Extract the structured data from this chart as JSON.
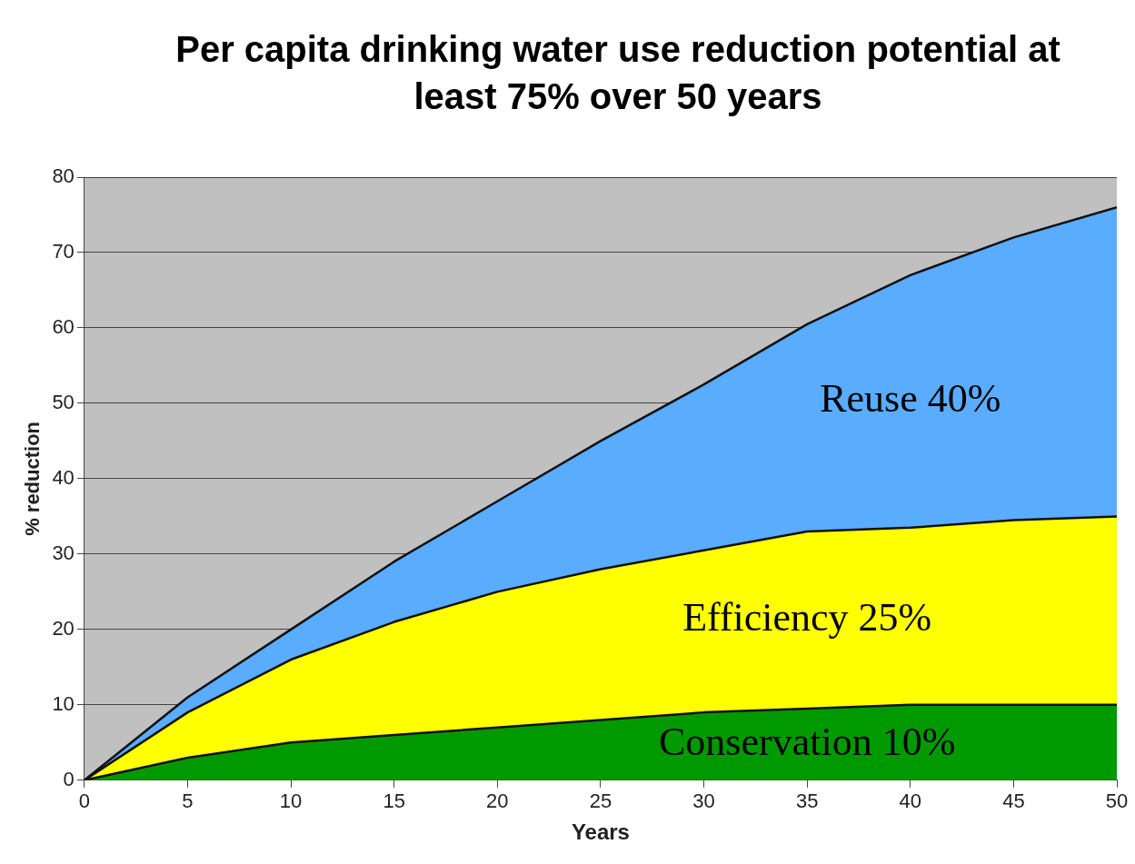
{
  "chart_data": {
    "type": "area",
    "title": "Per capita drinking water use reduction potential at least 75% over 50 years",
    "xlabel": "Years",
    "ylabel": "% reduction",
    "x": [
      0,
      5,
      10,
      15,
      20,
      25,
      30,
      35,
      40,
      45,
      50
    ],
    "series": [
      {
        "name": "Conservation 10%",
        "color": "#009900",
        "values": [
          0,
          3,
          5,
          6,
          7,
          8,
          9,
          9.5,
          10,
          10,
          10
        ]
      },
      {
        "name": "Efficiency 25%",
        "color": "#ffff00",
        "values": [
          0,
          6,
          11,
          15,
          18,
          20,
          21.5,
          23.5,
          23.5,
          24.5,
          25
        ]
      },
      {
        "name": "Reuse 40%",
        "color": "#5aacff",
        "values": [
          0,
          2,
          4,
          8,
          12,
          17,
          22,
          27.5,
          33.5,
          37.5,
          41
        ]
      }
    ],
    "stacked": true,
    "xlim": [
      0,
      50
    ],
    "xticks": [
      0,
      5,
      10,
      15,
      20,
      25,
      30,
      35,
      40,
      45,
      50
    ],
    "ylim": [
      0,
      80
    ],
    "yticks": [
      0,
      10,
      20,
      30,
      40,
      50,
      60,
      70,
      80
    ],
    "grid": "y",
    "legend": false
  }
}
